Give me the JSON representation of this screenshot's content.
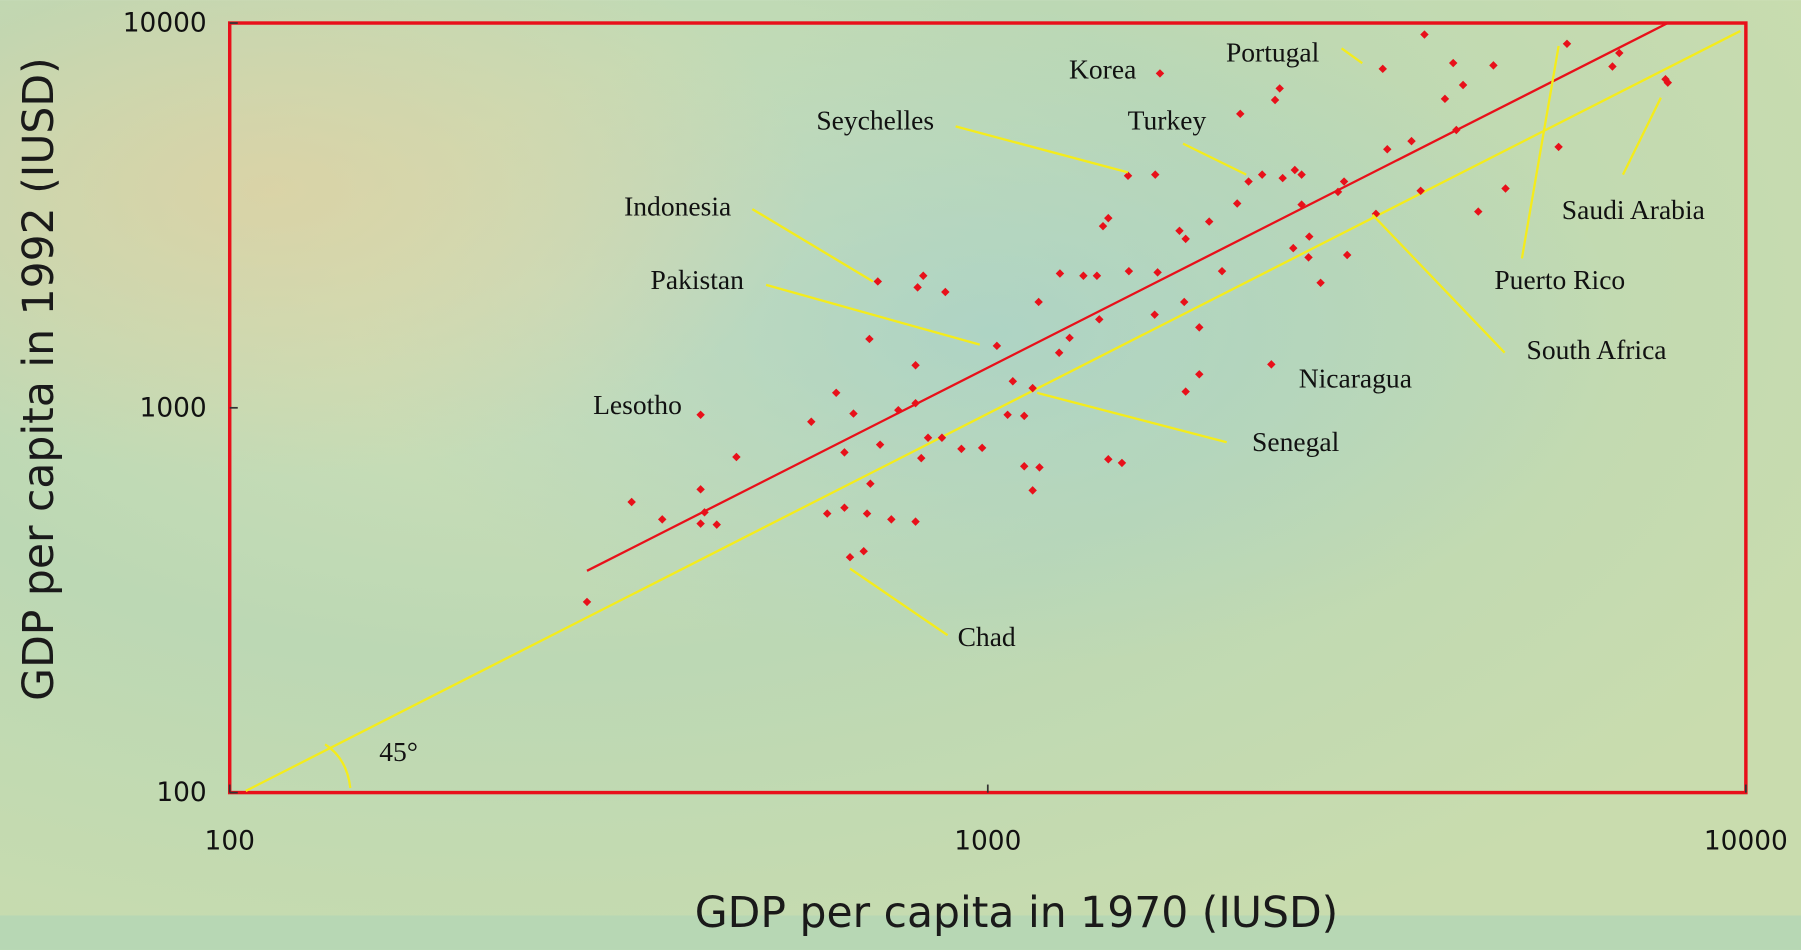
{
  "chart_data": {
    "type": "scatter",
    "log_x": true,
    "log_y": true,
    "x_label": "GDP per capita in 1970 (IUSD)",
    "y_label": "GDP per capita in 1992 (IUSD)",
    "xlim": [
      100,
      10000
    ],
    "ylim": [
      100,
      10000
    ],
    "xticks": [
      100,
      1000,
      10000
    ],
    "yticks": [
      100,
      1000,
      10000
    ],
    "frame_color": "#e8101a",
    "series": [
      {
        "color": "#e8101a",
        "x": [
          296,
          339,
          372,
          418,
          423,
          418,
          439,
          466,
          418,
          585,
          614,
          647,
          631,
          647,
          665,
          658,
          686,
          693,
          700,
          721,
          698,
          716,
          746,
          762,
          803,
          803,
          803,
          808,
          822,
          817,
          834,
          870,
          879,
          923,
          983,
          1028,
          1062,
          1079,
          1117,
          1117,
          1170,
          1146,
          1146,
          1167,
          1242,
          1245,
          1282,
          1337,
          1393,
          1403,
          1442,
          1503,
          1419,
          1442,
          1531,
          1535,
          1663,
          1660,
          1675,
          1687,
          1790,
          1824,
          1816,
          1824,
          1901,
          1901,
          1959,
          2037,
          2133,
          2153,
          2208,
          2301,
          2366,
          2393,
          2427,
          2449,
          2529,
          2541,
          2594,
          2594,
          2655,
          2649,
          2748,
          2897,
          2951,
          2979,
          3251,
          3319,
          3365,
          3622,
          3724,
          3767,
          4009,
          4111,
          4150,
          4236,
          4436,
          4645,
          4819,
          5662,
          5808,
          6668,
          6808,
          7834,
          7889
        ],
        "values": [
          313,
          569,
          513,
          614,
          535,
          500,
          497,
          745,
          959,
          920,
          531,
          550,
          1094,
          766,
          966,
          409,
          424,
          531,
          635,
          802,
          1510,
          2130,
          513,
          986,
          1290,
          1028,
          506,
          2056,
          2204,
          740,
          836,
          836,
          2000,
          782,
          787,
          1449,
          959,
          1172,
          953,
          705,
          700,
          610,
          1125,
          1884,
          1390,
          2234,
          1520,
          2204,
          2204,
          1698,
          735,
          719,
          2965,
          3112,
          4009,
          2265,
          4036,
          1746,
          2249,
          7396,
          2884,
          2748,
          1884,
          1102,
          1618,
          1222,
          3048,
          2265,
          3396,
          5808,
          3873,
          4036,
          1297,
          6310,
          6761,
          3954,
          2600,
          4150,
          4036,
          3373,
          2786,
          2460,
          2113,
          3640,
          3873,
          2495,
          3192,
          7603,
          4699,
          4932,
          3664,
          9333,
          6353,
          7870,
          5272,
          6902,
          3236,
          7762,
          3715,
          4764,
          8831,
          7709,
          8356,
          7145,
          6998
        ]
      }
    ],
    "lines": [
      {
        "color": "#e8101a",
        "x": [
          296,
          7889
        ],
        "y": [
          377,
          10000
        ]
      },
      {
        "color": "#f4ec1c",
        "x": [
          105,
          9830
        ],
        "y": [
          101,
          9530
        ]
      }
    ],
    "annotations": [
      {
        "text": "Korea"
      },
      {
        "text": "Portugal"
      },
      {
        "text": "Seychelles"
      },
      {
        "text": "Turkey"
      },
      {
        "text": "Indonesia"
      },
      {
        "text": "Pakistan"
      },
      {
        "text": "Lesotho"
      },
      {
        "text": "Nicaragua"
      },
      {
        "text": "Senegal"
      },
      {
        "text": "Chad"
      },
      {
        "text": "Saudi Arabia"
      },
      {
        "text": "Puerto Rico"
      },
      {
        "text": "South Africa"
      },
      {
        "text": "45°"
      }
    ]
  }
}
